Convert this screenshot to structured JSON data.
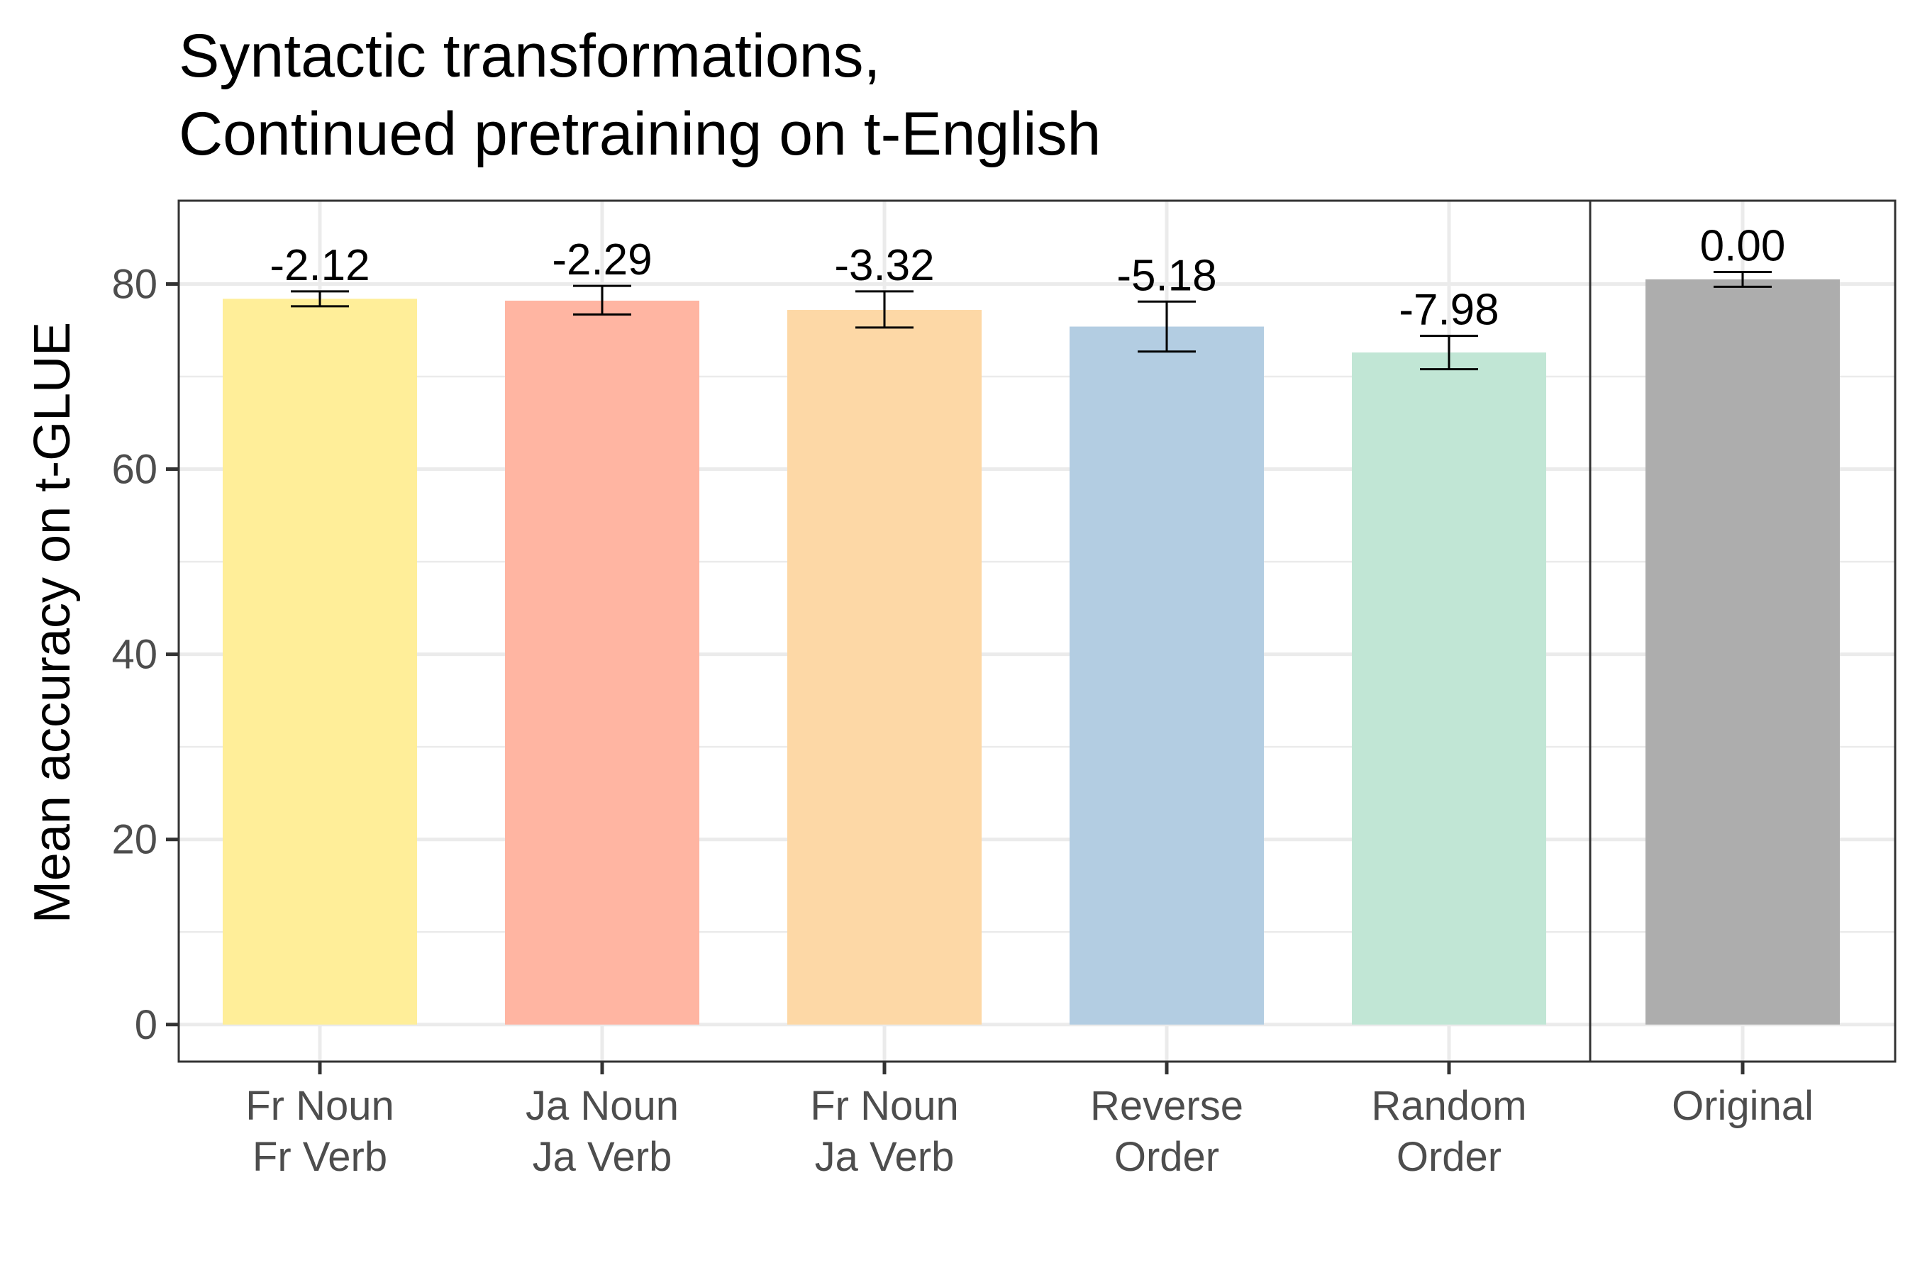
{
  "chart_data": {
    "type": "bar",
    "title": [
      "Syntactic transformations,",
      "Continued pretraining on t-English"
    ],
    "ylabel": "Mean accuracy on t-GLUE",
    "xlabel": "",
    "ylim": [
      -4,
      89
    ],
    "yticks": [
      0,
      20,
      40,
      60,
      80
    ],
    "grid": true,
    "legend": "none",
    "panels": [
      {
        "name": "transformed",
        "categories": [
          {
            "lines": [
              "Fr Noun",
              "Fr Verb"
            ],
            "value": 78.4,
            "err_low": 77.6,
            "err_high": 79.2,
            "label": "-2.12",
            "color": "#FFEE99"
          },
          {
            "lines": [
              "Ja Noun",
              "Ja Verb"
            ],
            "value": 78.2,
            "err_low": 76.7,
            "err_high": 79.8,
            "label": "-2.29",
            "color": "#FFB5A2"
          },
          {
            "lines": [
              "Fr Noun",
              "Ja Verb"
            ],
            "value": 77.2,
            "err_low": 75.3,
            "err_high": 79.2,
            "label": "-3.32",
            "color": "#FDD8A6"
          },
          {
            "lines": [
              "Reverse",
              "Order"
            ],
            "value": 75.4,
            "err_low": 72.7,
            "err_high": 78.1,
            "label": "-5.18",
            "color": "#B3CDE2"
          },
          {
            "lines": [
              "Random",
              "Order"
            ],
            "value": 72.6,
            "err_low": 70.8,
            "err_high": 74.4,
            "label": "-7.98",
            "color": "#C1E6D5"
          }
        ]
      },
      {
        "name": "original",
        "categories": [
          {
            "lines": [
              "Original"
            ],
            "value": 80.5,
            "err_low": 79.7,
            "err_high": 81.3,
            "label": "0.00",
            "color": "#ADADAD"
          }
        ]
      }
    ]
  }
}
